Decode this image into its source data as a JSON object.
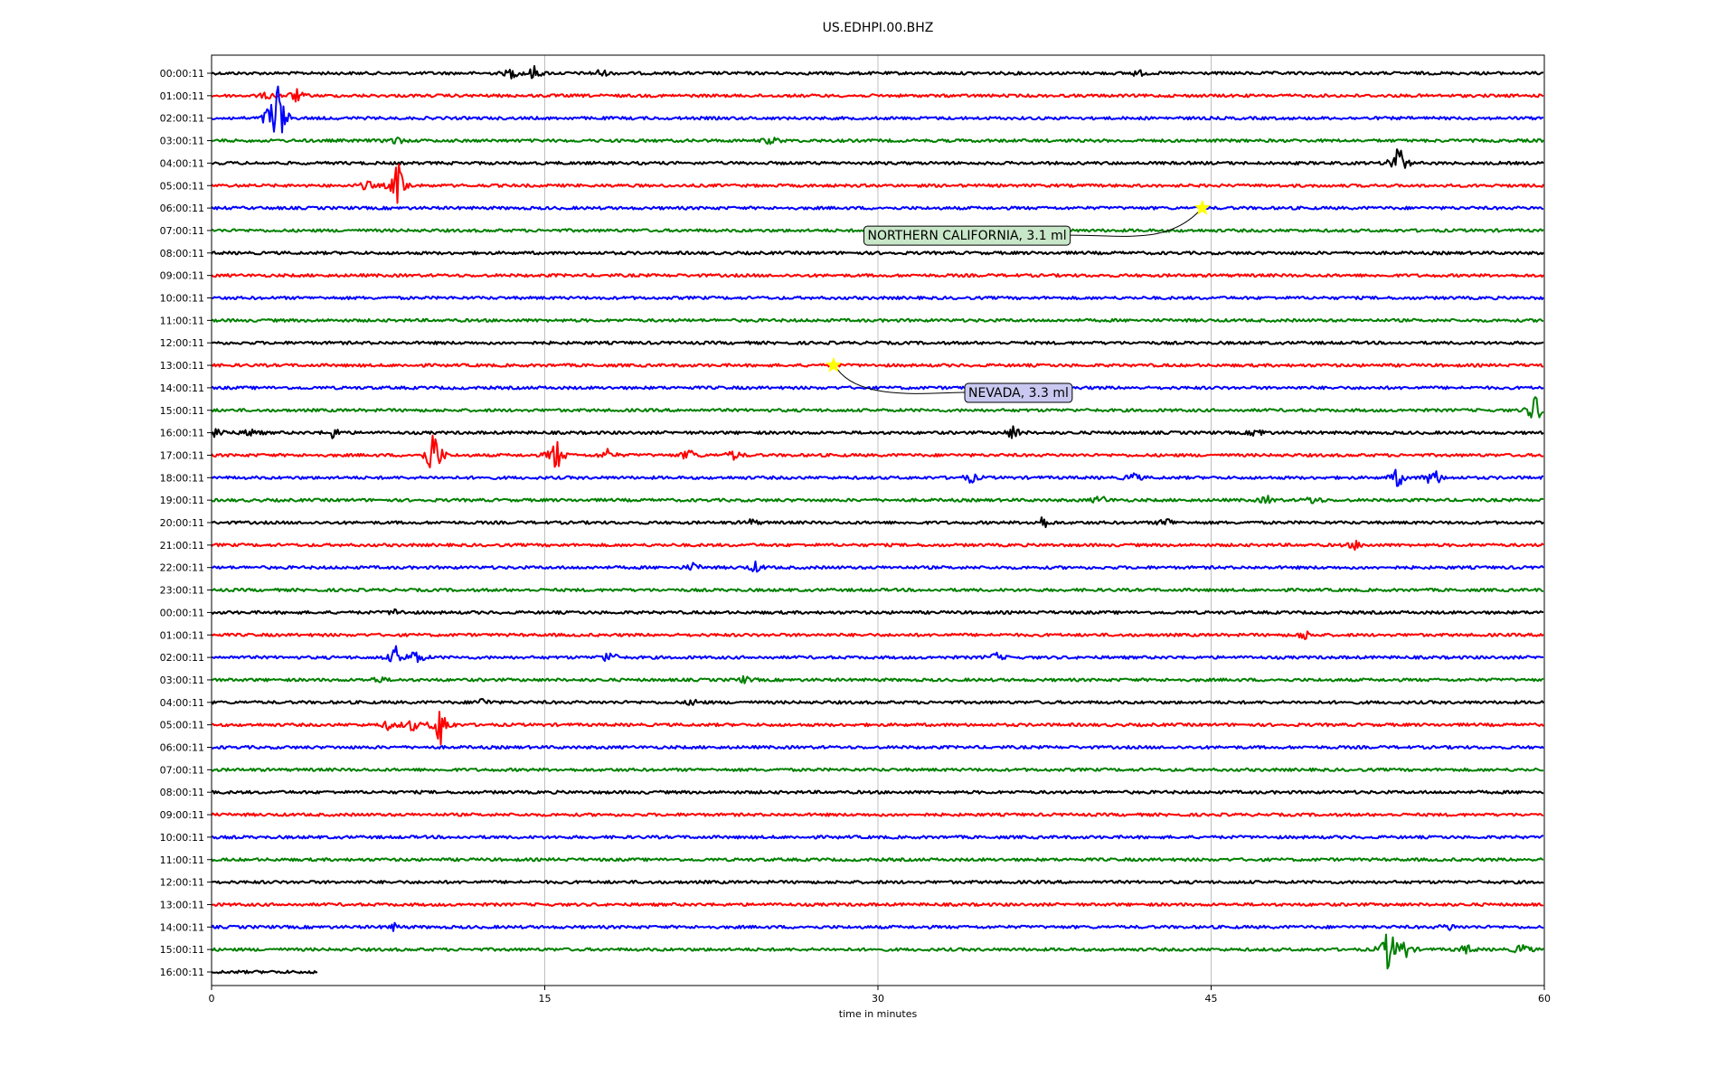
{
  "chart_data": {
    "type": "line",
    "title": "US.EDHPI.00.BHZ",
    "xlabel": "time in minutes",
    "ylabel": "",
    "xlim": [
      0,
      60
    ],
    "x_ticks": [
      "0",
      "15",
      "30",
      "45",
      "60"
    ],
    "grid": "vertical",
    "row_colors": [
      "#000000",
      "#ff0000",
      "#0000ff",
      "#008000"
    ],
    "marker_color": "#ffff00",
    "row_labels": [
      "00:00:11",
      "01:00:11",
      "02:00:11",
      "03:00:11",
      "04:00:11",
      "05:00:11",
      "06:00:11",
      "07:00:11",
      "08:00:11",
      "09:00:11",
      "10:00:11",
      "11:00:11",
      "12:00:11",
      "13:00:11",
      "14:00:11",
      "15:00:11",
      "16:00:11",
      "17:00:11",
      "18:00:11",
      "19:00:11",
      "20:00:11",
      "21:00:11",
      "22:00:11",
      "23:00:11",
      "00:00:11",
      "01:00:11",
      "02:00:11",
      "03:00:11",
      "04:00:11",
      "05:00:11",
      "06:00:11",
      "07:00:11",
      "08:00:11",
      "09:00:11",
      "10:00:11",
      "11:00:11",
      "12:00:11",
      "13:00:11",
      "14:00:11",
      "15:00:11",
      "16:00:11"
    ],
    "last_row_end_minute": 4.8,
    "bursts": [
      {
        "row": 0,
        "minute": 13.5,
        "amp": 6
      },
      {
        "row": 0,
        "minute": 14.5,
        "amp": 8
      },
      {
        "row": 0,
        "minute": 17.5,
        "amp": 5
      },
      {
        "row": 0,
        "minute": 41.7,
        "amp": 4
      },
      {
        "row": 1,
        "minute": 2.5,
        "amp": 4
      },
      {
        "row": 1,
        "minute": 3.8,
        "amp": 8
      },
      {
        "row": 2,
        "minute": 2.6,
        "amp": 12
      },
      {
        "row": 2,
        "minute": 3.0,
        "amp": 45
      },
      {
        "row": 3,
        "minute": 8.3,
        "amp": 5
      },
      {
        "row": 3,
        "minute": 25.2,
        "amp": 5
      },
      {
        "row": 4,
        "minute": 53.4,
        "amp": 28
      },
      {
        "row": 5,
        "minute": 8.4,
        "amp": 30
      },
      {
        "row": 5,
        "minute": 7.0,
        "amp": 6
      },
      {
        "row": 15,
        "minute": 59.6,
        "amp": 20
      },
      {
        "row": 16,
        "minute": 0.3,
        "amp": 8
      },
      {
        "row": 16,
        "minute": 1.8,
        "amp": 6
      },
      {
        "row": 16,
        "minute": 5.5,
        "amp": 7
      },
      {
        "row": 16,
        "minute": 36.1,
        "amp": 9
      },
      {
        "row": 16,
        "minute": 47.1,
        "amp": 6
      },
      {
        "row": 17,
        "minute": 10.0,
        "amp": 38
      },
      {
        "row": 17,
        "minute": 15.5,
        "amp": 22
      },
      {
        "row": 17,
        "minute": 21.5,
        "amp": 8
      },
      {
        "row": 17,
        "minute": 17.8,
        "amp": 7
      },
      {
        "row": 17,
        "minute": 23.5,
        "amp": 6
      },
      {
        "row": 18,
        "minute": 34.2,
        "amp": 6
      },
      {
        "row": 18,
        "minute": 41.5,
        "amp": 6
      },
      {
        "row": 18,
        "minute": 53.4,
        "amp": 12
      },
      {
        "row": 18,
        "minute": 55.0,
        "amp": 14
      },
      {
        "row": 19,
        "minute": 40.0,
        "amp": 6
      },
      {
        "row": 19,
        "minute": 47.5,
        "amp": 5
      },
      {
        "row": 19,
        "minute": 49.6,
        "amp": 6
      },
      {
        "row": 20,
        "minute": 37.4,
        "amp": 8
      },
      {
        "row": 20,
        "minute": 43.0,
        "amp": 6
      },
      {
        "row": 20,
        "minute": 24.3,
        "amp": 4
      },
      {
        "row": 21,
        "minute": 51.5,
        "amp": 5
      },
      {
        "row": 22,
        "minute": 21.7,
        "amp": 5
      },
      {
        "row": 22,
        "minute": 24.5,
        "amp": 6
      },
      {
        "row": 24,
        "minute": 8.3,
        "amp": 4
      },
      {
        "row": 25,
        "minute": 49.2,
        "amp": 6
      },
      {
        "row": 26,
        "minute": 8.3,
        "amp": 12
      },
      {
        "row": 26,
        "minute": 9.2,
        "amp": 10
      },
      {
        "row": 26,
        "minute": 17.9,
        "amp": 9
      },
      {
        "row": 26,
        "minute": 35.3,
        "amp": 5
      },
      {
        "row": 27,
        "minute": 7.5,
        "amp": 4
      },
      {
        "row": 27,
        "minute": 24.0,
        "amp": 4
      },
      {
        "row": 28,
        "minute": 12.2,
        "amp": 5
      },
      {
        "row": 28,
        "minute": 21.7,
        "amp": 4
      },
      {
        "row": 29,
        "minute": 10.3,
        "amp": 28
      },
      {
        "row": 29,
        "minute": 9.0,
        "amp": 8
      },
      {
        "row": 29,
        "minute": 8.0,
        "amp": 6
      },
      {
        "row": 38,
        "minute": 8.2,
        "amp": 4
      },
      {
        "row": 38,
        "minute": 55.7,
        "amp": 4
      },
      {
        "row": 39,
        "minute": 53.0,
        "amp": 30
      },
      {
        "row": 39,
        "minute": 53.7,
        "amp": 12
      },
      {
        "row": 39,
        "minute": 56.5,
        "amp": 6
      },
      {
        "row": 39,
        "minute": 59.0,
        "amp": 8
      }
    ],
    "annotations": [
      {
        "text": "NORTHERN CALIFORNIA, 3.1 ml",
        "row": 6,
        "minute": 44.6,
        "bg": "#c8e6c8"
      },
      {
        "text": "NEVADA, 3.3 ml",
        "row": 13,
        "minute": 28.0,
        "bg": "#c8c8f0"
      }
    ]
  }
}
